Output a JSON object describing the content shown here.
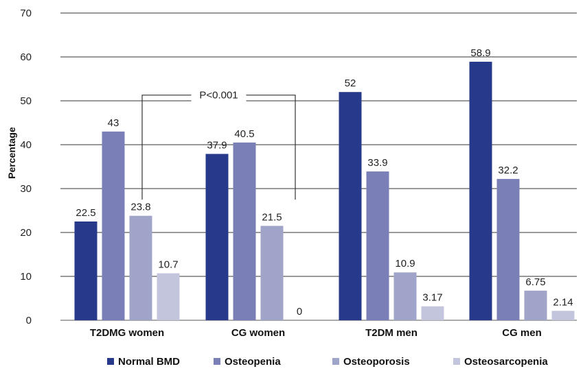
{
  "chart_data": {
    "type": "bar",
    "title": "",
    "xlabel": "",
    "ylabel": "Percentage",
    "ylim": [
      0,
      70
    ],
    "yticks": [
      "0",
      "10",
      "20",
      "30",
      "40",
      "50",
      "60",
      "70"
    ],
    "grid": true,
    "legend_position": "bottom",
    "categories": [
      "T2DMG women",
      "CG women",
      "T2DM men",
      "CG men"
    ],
    "series": [
      {
        "name": "Normal BMD",
        "color": "#27398a",
        "values": [
          22.5,
          37.9,
          52,
          58.9
        ],
        "labels": [
          "22.5",
          "37.9",
          "52",
          "58.9"
        ]
      },
      {
        "name": "Osteopenia",
        "color": "#7a80b7",
        "values": [
          43,
          40.5,
          33.9,
          32.2
        ],
        "labels": [
          "43",
          "40.5",
          "33.9",
          "32.2"
        ]
      },
      {
        "name": "Osteoporosis",
        "color": "#a0a4c9",
        "values": [
          23.8,
          21.5,
          10.9,
          6.75
        ],
        "labels": [
          "23.8",
          "21.5",
          "10.9",
          "6.75"
        ]
      },
      {
        "name": "Osteosarcopenia",
        "color": "#c2c5dc",
        "values": [
          10.7,
          0,
          3.17,
          2.14
        ],
        "labels": [
          "10.7",
          "0",
          "3.17",
          "2.14"
        ]
      }
    ],
    "annotation": {
      "text": "P<0.001",
      "between": [
        "T2DMG women",
        "CG women"
      ]
    }
  }
}
